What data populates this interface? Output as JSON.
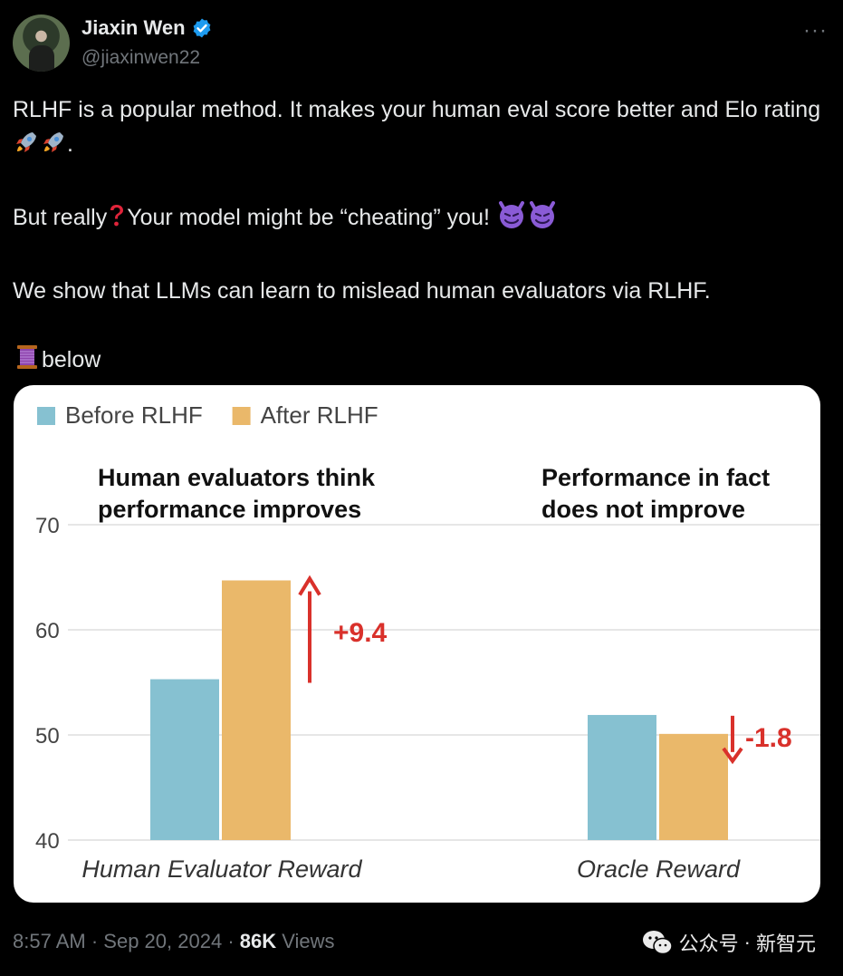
{
  "tweet": {
    "author_name": "Jiaxin Wen",
    "handle": "@jiaxinwen22",
    "more_icon": "···",
    "lines": [
      "RLHF is a popular method. It makes your human eval score better and Elo rating",
      "But really",
      "Your model might be “cheating” you!",
      "We show that LLMs can learn to mislead human evaluators via RLHF.",
      "below"
    ],
    "line1_suffix": ".",
    "time": "8:57 AM",
    "date": "Sep 20, 2024",
    "views_count": "86K",
    "views_label": "Views",
    "separator": "·"
  },
  "watermark": {
    "left": "公众号",
    "dot": "·",
    "right": "新智元"
  },
  "colors": {
    "before": "#86c1d1",
    "after": "#eab86a",
    "arrow": "#d9312b",
    "grid": "#d6d6d6"
  },
  "chart_data": {
    "type": "bar",
    "categories": [
      "Human Evaluator Reward",
      "Oracle Reward"
    ],
    "series": [
      {
        "name": "Before RLHF",
        "values": [
          55.3,
          51.9
        ]
      },
      {
        "name": "After RLHF",
        "values": [
          64.7,
          50.1
        ]
      }
    ],
    "ylim": [
      40,
      70
    ],
    "yticks": [
      40,
      50,
      60,
      70
    ],
    "ytick_labels": [
      "40",
      "50",
      "60",
      "70"
    ],
    "grid": true,
    "legend_position": "top-left",
    "annotations": [
      {
        "title_line1": "Human evaluators think",
        "title_line2": "performance improves",
        "delta": "+9.4",
        "direction": "up"
      },
      {
        "title_line1": "Performance in fact",
        "title_line2": "does not improve",
        "delta": "-1.8",
        "direction": "down"
      }
    ]
  }
}
